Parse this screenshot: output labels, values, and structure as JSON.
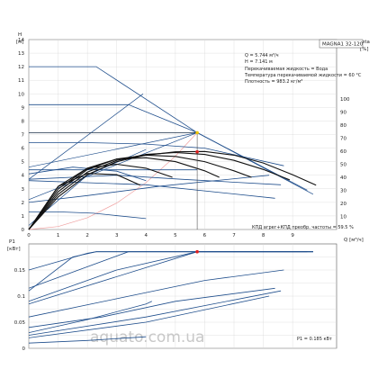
{
  "chart_data": [
    {
      "type": "line",
      "model_label": "MAGNA1 32-120",
      "y_label_left_name": "H",
      "y_label_left_unit": "[м]",
      "y_label_right": "eta",
      "y_label_right_unit": "[%]",
      "x_label": "Q [м³/ч]",
      "xlim": [
        0,
        10.5
      ],
      "ylim": [
        0,
        14
      ],
      "eta_lim": [
        0,
        100
      ],
      "x_ticks": [
        "0",
        "1",
        "2",
        "3",
        "4",
        "5",
        "6",
        "7",
        "8",
        "9"
      ],
      "y_ticks": [
        "0",
        "1",
        "2",
        "3",
        "4",
        "5",
        "6",
        "7",
        "8",
        "9",
        "10",
        "11",
        "12",
        "13",
        "14"
      ],
      "eta_ticks": [
        "10",
        "20",
        "30",
        "40",
        "50",
        "60",
        "70",
        "80",
        "90",
        "100"
      ],
      "info_lines": [
        "Q = 5.744 м³/ч",
        "H = 7.141 м",
        "Перекачиваемая жидкость = Вода",
        "Температура перекачиваемой жидкости = 60 °C",
        "Плотность = 983.2 кг/м³"
      ],
      "efficiency_note": "КПД агрег+КПД преобр. частоты = 59.5 %",
      "operating_point": {
        "q": 5.744,
        "h": 7.141,
        "eta": 59.5
      },
      "operating_point_color": "#f2c500",
      "eta_point_color": "#e02020",
      "curve_color": "#1f4e8c",
      "eta_curve_color": "#111111",
      "system_curve_color": "#f0a0a0",
      "qh_curves": [
        {
          "x": [
            0,
            2.3,
            5.744,
            9.7
          ],
          "y": [
            12.0,
            12.0,
            7.141,
            2.6
          ]
        },
        {
          "x": [
            0,
            3.4,
            5.744,
            9.5
          ],
          "y": [
            9.2,
            9.2,
            7.141,
            2.9
          ]
        },
        {
          "x": [
            0,
            5.744
          ],
          "y": [
            7.141,
            7.141
          ]
        },
        {
          "x": [
            0,
            2.0,
            4.0,
            6.0,
            8.7
          ],
          "y": [
            6.4,
            6.4,
            6.3,
            6.0,
            4.7
          ]
        },
        {
          "x": [
            0,
            1.5,
            3.0,
            4.0
          ],
          "y": [
            4.1,
            4.6,
            4.3,
            3.6
          ]
        },
        {
          "x": [
            0,
            3.0,
            5.2,
            8.6
          ],
          "y": [
            3.7,
            4.0,
            3.7,
            3.3
          ]
        },
        {
          "x": [
            0,
            2.0,
            4.5,
            8.2
          ],
          "y": [
            2.0,
            2.5,
            3.2,
            4.0
          ]
        },
        {
          "x": [
            0,
            1.0,
            2.2,
            4.0
          ],
          "y": [
            1.3,
            1.3,
            1.2,
            0.8
          ]
        },
        {
          "x": [
            0,
            5.744
          ],
          "y": [
            4.4,
            4.4
          ]
        },
        {
          "x": [
            0,
            4.0,
            8.4
          ],
          "y": [
            3.6,
            3.3,
            2.3
          ]
        }
      ],
      "control_lines": [
        {
          "x": [
            0,
            3.9
          ],
          "y": [
            3.7,
            10.0
          ]
        },
        {
          "x": [
            0,
            5.744
          ],
          "y": [
            4.6,
            7.141
          ]
        },
        {
          "x": [
            0,
            5.744
          ],
          "y": [
            2.2,
            7.141
          ]
        },
        {
          "x": [
            0,
            2.0,
            4.0
          ],
          "y": [
            0.3,
            4.0,
            5.9
          ]
        }
      ],
      "eta_curves": [
        {
          "x": [
            0,
            1,
            2,
            3,
            4,
            5,
            6,
            7,
            8,
            9,
            9.8
          ],
          "y": [
            0,
            25,
            42,
            52,
            57,
            59.5,
            59.8,
            57,
            51,
            42,
            34
          ]
        },
        {
          "x": [
            0,
            1,
            2,
            3,
            4,
            5,
            6,
            7,
            8,
            8.9
          ],
          "y": [
            0,
            27,
            44,
            53,
            57.5,
            59,
            57.5,
            53,
            46,
            38
          ]
        },
        {
          "x": [
            0,
            1,
            2,
            3,
            4,
            5,
            6,
            7,
            7.6
          ],
          "y": [
            0,
            29,
            46,
            54,
            57,
            56,
            52,
            45,
            40
          ]
        },
        {
          "x": [
            0,
            1,
            2,
            3,
            4,
            5,
            6,
            6.5
          ],
          "y": [
            0,
            31,
            47,
            54,
            55,
            52,
            45,
            40
          ]
        },
        {
          "x": [
            0,
            1,
            2,
            3,
            4,
            4.9
          ],
          "y": [
            0,
            33,
            47,
            50,
            47,
            40
          ]
        },
        {
          "x": [
            0,
            1,
            2,
            3,
            3.8
          ],
          "y": [
            0,
            33,
            43,
            42,
            34
          ]
        }
      ],
      "system_curve": {
        "x": [
          0,
          1,
          2,
          3,
          4,
          5,
          5.744
        ],
        "y": [
          0,
          0.22,
          0.87,
          1.95,
          3.46,
          5.41,
          7.141
        ]
      }
    },
    {
      "type": "line",
      "y_label_name": "P1",
      "y_label_unit": "[кВт]",
      "xlim": [
        0,
        10.5
      ],
      "ylim": [
        0,
        0.2
      ],
      "y_ticks": [
        "0",
        "0.05",
        "0.1",
        "0.15"
      ],
      "power_note": "P1 = 0.185 кВт",
      "operating_point": {
        "q": 5.744,
        "p": 0.185
      },
      "watermark": "aquato.com.ua",
      "power_curves": [
        {
          "x": [
            0,
            2.0,
            2.3,
            9.7
          ],
          "y": [
            0.15,
            0.182,
            0.185,
            0.185
          ]
        },
        {
          "x": [
            0,
            3.4,
            9.5
          ],
          "y": [
            0.115,
            0.185,
            0.185
          ]
        },
        {
          "x": [
            0,
            5.744,
            9.7
          ],
          "y": [
            0.085,
            0.185,
            0.185
          ]
        },
        {
          "x": [
            0,
            3.0,
            6.0,
            8.7
          ],
          "y": [
            0.06,
            0.095,
            0.13,
            0.15
          ]
        },
        {
          "x": [
            0,
            2.0,
            4.0,
            4.2
          ],
          "y": [
            0.03,
            0.055,
            0.085,
            0.09
          ]
        },
        {
          "x": [
            0,
            4.0,
            8.6
          ],
          "y": [
            0.025,
            0.06,
            0.11
          ]
        },
        {
          "x": [
            0,
            4.0,
            8.2
          ],
          "y": [
            0.02,
            0.05,
            0.1
          ]
        },
        {
          "x": [
            0,
            2.0,
            4.0
          ],
          "y": [
            0.01,
            0.015,
            0.022
          ]
        },
        {
          "x": [
            0,
            3.0,
            5.744,
            9.7
          ],
          "y": [
            0.09,
            0.15,
            0.185,
            0.185
          ]
        },
        {
          "x": [
            0,
            2.5,
            5.0,
            8.4
          ],
          "y": [
            0.04,
            0.06,
            0.09,
            0.115
          ]
        },
        {
          "x": [
            0,
            1.5,
            2.3,
            9.7
          ],
          "y": [
            0.11,
            0.175,
            0.185,
            0.185
          ]
        }
      ]
    }
  ]
}
